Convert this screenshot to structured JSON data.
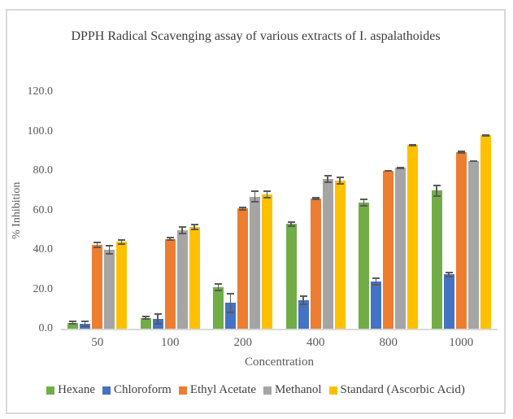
{
  "chart_data": {
    "type": "bar",
    "title": "DPPH Radical Scavenging assay of various extracts of I. aspalathoides",
    "xlabel": "Concentration",
    "ylabel": "% Inhibition",
    "categories": [
      "50",
      "100",
      "200",
      "400",
      "800",
      "1000"
    ],
    "ylim": [
      0,
      120
    ],
    "ytick_step": 20,
    "ytick_labels": [
      "0.0",
      "20.0",
      "40.0",
      "60.0",
      "80.0",
      "100.0",
      "120.0"
    ],
    "grid": false,
    "legend_position": "bottom",
    "error_bar_color": "#595959",
    "series": [
      {
        "name": "Hexane",
        "color": "#70AD47",
        "values": [
          3,
          5.5,
          21,
          53,
          64,
          70
        ],
        "errors": [
          1,
          1,
          2,
          1.5,
          2,
          3
        ]
      },
      {
        "name": "Chloroform",
        "color": "#4472C4",
        "values": [
          2.5,
          5,
          13,
          14.5,
          24,
          27.5
        ],
        "errors": [
          1.5,
          3,
          5,
          2.5,
          2,
          1.5
        ]
      },
      {
        "name": "Ethyl Acetate",
        "color": "#ED7D31",
        "values": [
          42.5,
          45.5,
          61,
          66,
          80,
          89.5
        ],
        "errors": [
          1.5,
          1,
          1,
          1,
          0.5,
          1
        ]
      },
      {
        "name": "Methanol",
        "color": "#A5A5A5",
        "values": [
          40,
          50,
          67,
          76,
          81.5,
          85
        ],
        "errors": [
          2.5,
          2,
          3,
          2,
          0.5,
          0.5
        ]
      },
      {
        "name": "Standard (Ascorbic Acid)",
        "color": "#FFC000",
        "values": [
          44,
          51.5,
          68,
          75,
          93,
          98
        ],
        "errors": [
          1.5,
          1.5,
          2,
          2,
          0.5,
          0.5
        ]
      }
    ]
  }
}
